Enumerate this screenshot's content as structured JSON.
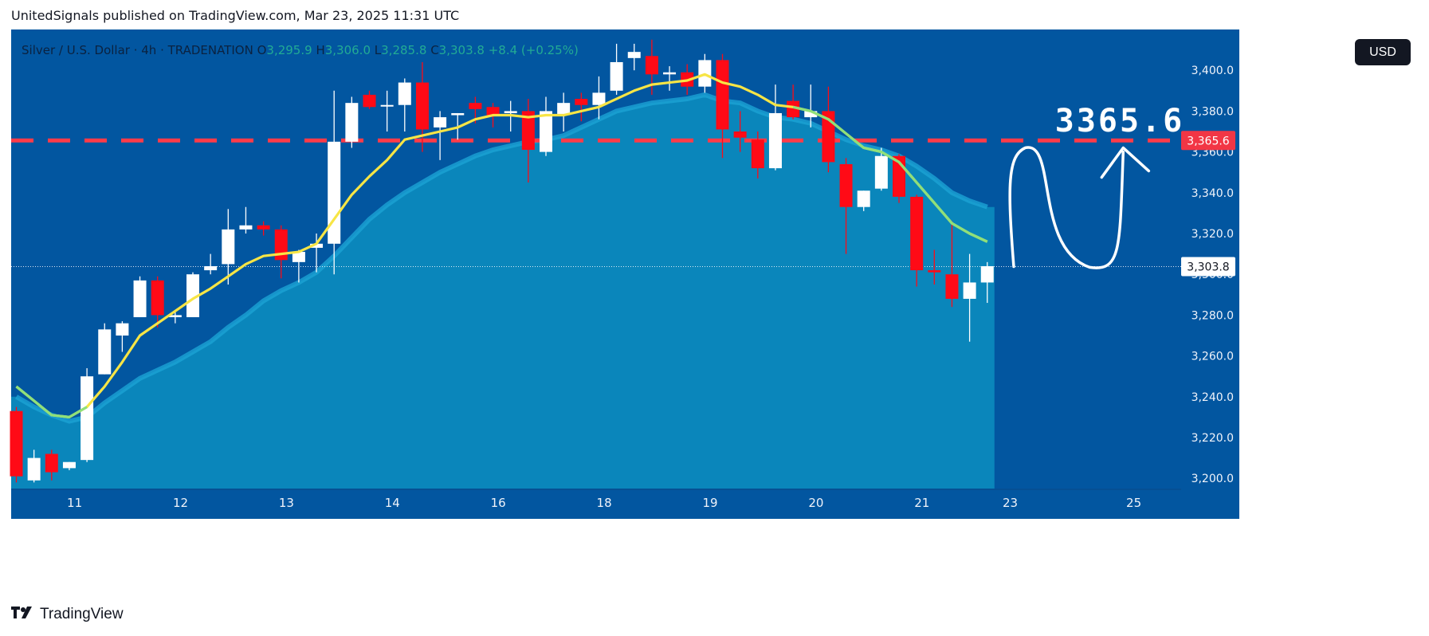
{
  "header": {
    "publisher": "UnitedSignals published on TradingView.com, Mar 23, 2025 11:31 UTC"
  },
  "legend": {
    "symbol": "Silver / U.S. Dollar · 4h · TRADENATION",
    "o_label": "O",
    "o_value": "3,295.9",
    "h_label": "H",
    "h_value": "3,306.0",
    "l_label": "L",
    "l_value": "3,285.8",
    "c_label": "C",
    "c_value": "3,303.8",
    "change": "+8.4 (+0.25%)"
  },
  "currency_button": "USD",
  "annotation": {
    "level_text": "3365.6"
  },
  "price_labels": {
    "level": "3,365.6",
    "last": "3,303.8"
  },
  "footer": {
    "brand": "TradingView",
    "logo": "tradingview-logo-icon"
  },
  "colors": {
    "background": "#0256a0",
    "cloud": "#0a86bb",
    "cloud_edge": "#1ba3d4",
    "bull": "#ffffff",
    "bear": "#ff0a16",
    "ema_fast": "#f7e545",
    "ema_slow": "#8fe07a",
    "level_line": "#ff3b48",
    "last_price_label_bg": "#ffffff",
    "level_label_bg": "#f23645"
  },
  "chart_data": {
    "type": "candlestick",
    "timeframe": "4h",
    "y_axis": {
      "min": 3195,
      "max": 3420,
      "ticks": [
        3200,
        3220,
        3240,
        3260,
        3280,
        3300,
        3320,
        3340,
        3360,
        3380,
        3400
      ]
    },
    "y_tick_labels": [
      "3,200.0",
      "3,220.0",
      "3,240.0",
      "3,260.0",
      "3,280.0",
      "3,300.0",
      "3,320.0",
      "3,340.0",
      "3,360.0",
      "3,380.0",
      "3,400.0"
    ],
    "x_tick_labels": [
      {
        "label": "11",
        "index": 3.3
      },
      {
        "label": "12",
        "index": 9.3
      },
      {
        "label": "13",
        "index": 15.3
      },
      {
        "label": "14",
        "index": 21.3
      },
      {
        "label": "16",
        "index": 27.3
      },
      {
        "label": "18",
        "index": 33.3
      },
      {
        "label": "19",
        "index": 39.3
      },
      {
        "label": "20",
        "index": 45.3
      },
      {
        "label": "21",
        "index": 51.3
      },
      {
        "label": "23",
        "index": 56.3
      },
      {
        "label": "25",
        "index": 63.3
      }
    ],
    "horizontal_level": 3365.6,
    "last_price": 3303.8,
    "candles": [
      {
        "o": 3233,
        "h": 3235,
        "l": 3198,
        "c": 3201
      },
      {
        "o": 3199,
        "h": 3214,
        "l": 3198,
        "c": 3210
      },
      {
        "o": 3212,
        "h": 3214,
        "l": 3199,
        "c": 3203
      },
      {
        "o": 3205,
        "h": 3208,
        "l": 3204,
        "c": 3208
      },
      {
        "o": 3209,
        "h": 3254,
        "l": 3208,
        "c": 3250
      },
      {
        "o": 3251,
        "h": 3276,
        "l": 3251,
        "c": 3273
      },
      {
        "o": 3270,
        "h": 3277,
        "l": 3262,
        "c": 3276
      },
      {
        "o": 3279,
        "h": 3299,
        "l": 3279,
        "c": 3297
      },
      {
        "o": 3297,
        "h": 3299,
        "l": 3274,
        "c": 3280
      },
      {
        "o": 3279,
        "h": 3282,
        "l": 3276,
        "c": 3280
      },
      {
        "o": 3279,
        "h": 3301,
        "l": 3279,
        "c": 3300
      },
      {
        "o": 3302,
        "h": 3310,
        "l": 3300,
        "c": 3304
      },
      {
        "o": 3305,
        "h": 3332,
        "l": 3295,
        "c": 3322
      },
      {
        "o": 3322,
        "h": 3333,
        "l": 3320,
        "c": 3324
      },
      {
        "o": 3324,
        "h": 3326,
        "l": 3319,
        "c": 3322
      },
      {
        "o": 3322,
        "h": 3324,
        "l": 3298,
        "c": 3307
      },
      {
        "o": 3306,
        "h": 3312,
        "l": 3296,
        "c": 3311
      },
      {
        "o": 3313,
        "h": 3320,
        "l": 3301,
        "c": 3315
      },
      {
        "o": 3315,
        "h": 3390,
        "l": 3300,
        "c": 3365
      },
      {
        "o": 3365,
        "h": 3387,
        "l": 3362,
        "c": 3384
      },
      {
        "o": 3388,
        "h": 3390,
        "l": 3381,
        "c": 3382
      },
      {
        "o": 3383,
        "h": 3390,
        "l": 3370,
        "c": 3383
      },
      {
        "o": 3383,
        "h": 3396,
        "l": 3370,
        "c": 3394
      },
      {
        "o": 3394,
        "h": 3404,
        "l": 3360,
        "c": 3371
      },
      {
        "o": 3372,
        "h": 3380,
        "l": 3356,
        "c": 3377
      },
      {
        "o": 3378,
        "h": 3379,
        "l": 3366,
        "c": 3379
      },
      {
        "o": 3384,
        "h": 3387,
        "l": 3374,
        "c": 3381
      },
      {
        "o": 3382,
        "h": 3384,
        "l": 3372,
        "c": 3378
      },
      {
        "o": 3379,
        "h": 3385,
        "l": 3370,
        "c": 3380
      },
      {
        "o": 3380,
        "h": 3386,
        "l": 3345,
        "c": 3361
      },
      {
        "o": 3360,
        "h": 3387,
        "l": 3358,
        "c": 3380
      },
      {
        "o": 3378,
        "h": 3389,
        "l": 3370,
        "c": 3384
      },
      {
        "o": 3386,
        "h": 3389,
        "l": 3375,
        "c": 3383
      },
      {
        "o": 3383,
        "h": 3397,
        "l": 3376,
        "c": 3389
      },
      {
        "o": 3390,
        "h": 3413,
        "l": 3388,
        "c": 3404
      },
      {
        "o": 3406,
        "h": 3413,
        "l": 3400,
        "c": 3409
      },
      {
        "o": 3407,
        "h": 3415,
        "l": 3388,
        "c": 3398
      },
      {
        "o": 3398,
        "h": 3402,
        "l": 3390,
        "c": 3399
      },
      {
        "o": 3399,
        "h": 3403,
        "l": 3388,
        "c": 3392
      },
      {
        "o": 3392,
        "h": 3408,
        "l": 3389,
        "c": 3405
      },
      {
        "o": 3405,
        "h": 3408,
        "l": 3357,
        "c": 3371
      },
      {
        "o": 3370,
        "h": 3380,
        "l": 3360,
        "c": 3367
      },
      {
        "o": 3366,
        "h": 3370,
        "l": 3347,
        "c": 3352
      },
      {
        "o": 3352,
        "h": 3393,
        "l": 3351,
        "c": 3379
      },
      {
        "o": 3385,
        "h": 3393,
        "l": 3376,
        "c": 3377
      },
      {
        "o": 3377,
        "h": 3393,
        "l": 3372,
        "c": 3380
      },
      {
        "o": 3380,
        "h": 3392,
        "l": 3350,
        "c": 3355
      },
      {
        "o": 3354,
        "h": 3357,
        "l": 3310,
        "c": 3333
      },
      {
        "o": 3333,
        "h": 3341,
        "l": 3331,
        "c": 3341
      },
      {
        "o": 3342,
        "h": 3362,
        "l": 3341,
        "c": 3358
      },
      {
        "o": 3358,
        "h": 3359,
        "l": 3335,
        "c": 3338
      },
      {
        "o": 3338,
        "h": 3339,
        "l": 3294,
        "c": 3302
      },
      {
        "o": 3302,
        "h": 3312,
        "l": 3295,
        "c": 3301
      },
      {
        "o": 3300,
        "h": 3326,
        "l": 3284,
        "c": 3288
      },
      {
        "o": 3288,
        "h": 3310,
        "l": 3267,
        "c": 3296
      },
      {
        "o": 3296,
        "h": 3306,
        "l": 3286,
        "c": 3304
      }
    ],
    "ema_fast": [
      3245,
      3238,
      3231,
      3230,
      3235,
      3245,
      3257,
      3270,
      3276,
      3282,
      3288,
      3293,
      3299,
      3305,
      3309,
      3310,
      3311,
      3315,
      3327,
      3339,
      3348,
      3356,
      3366,
      3368,
      3370,
      3372,
      3376,
      3378,
      3378,
      3377,
      3378,
      3378,
      3380,
      3382,
      3386,
      3390,
      3393,
      3394,
      3395,
      3398,
      3394,
      3392,
      3388,
      3383,
      3382,
      3380,
      3376,
      3369,
      3362,
      3360,
      3355,
      3345,
      3335,
      3325,
      3320,
      3316
    ],
    "ema_slow": [
      3240,
      3235,
      3231,
      3228,
      3230,
      3237,
      3243,
      3249,
      3253,
      3257,
      3262,
      3267,
      3274,
      3280,
      3287,
      3292,
      3296,
      3301,
      3309,
      3318,
      3327,
      3334,
      3340,
      3345,
      3350,
      3354,
      3358,
      3361,
      3363,
      3365,
      3366,
      3368,
      3372,
      3376,
      3380,
      3382,
      3384,
      3385,
      3386,
      3388,
      3385,
      3384,
      3380,
      3377,
      3376,
      3374,
      3370,
      3366,
      3363,
      3361,
      3358,
      3353,
      3347,
      3340,
      3336,
      3333
    ],
    "projection": {
      "description": "hand-drawn wave projection towards 3365.6",
      "points": [
        {
          "i": 56.5,
          "p": 3303.8
        },
        {
          "i": 56.6,
          "p": 3355
        },
        {
          "i": 57.6,
          "p": 3362
        },
        {
          "i": 60.8,
          "p": 3305
        },
        {
          "i": 62.5,
          "p": 3316
        },
        {
          "i": 62.7,
          "p": 3360
        }
      ],
      "arrow_tip": {
        "i": 62.7,
        "p": 3362
      }
    }
  }
}
